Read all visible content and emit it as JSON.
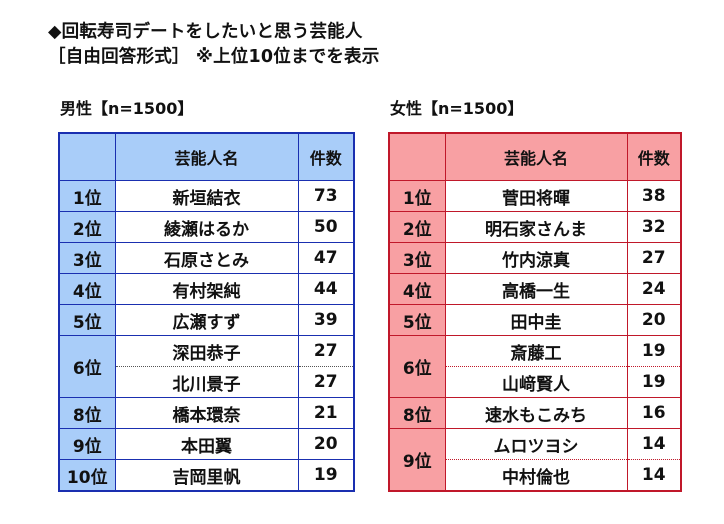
{
  "title": {
    "line1": "◆回転寿司デートをしたいと思う芸能人",
    "line2": "［自由回答形式］ ※上位10位までを表示"
  },
  "male": {
    "label": "男性【n=1500】",
    "header": {
      "rank": "",
      "name": "芸能人名",
      "count": "件数"
    },
    "rows": [
      {
        "rank": "1位",
        "name": "新垣結衣",
        "count": "73"
      },
      {
        "rank": "2位",
        "name": "綾瀬はるか",
        "count": "50"
      },
      {
        "rank": "3位",
        "name": "石原さとみ",
        "count": "47"
      },
      {
        "rank": "4位",
        "name": "有村架純",
        "count": "44"
      },
      {
        "rank": "5位",
        "name": "広瀬すず",
        "count": "39"
      },
      {
        "rank": "6位",
        "name": "深田恭子",
        "count": "27"
      },
      {
        "rank": "6位",
        "name": "北川景子",
        "count": "27"
      },
      {
        "rank": "8位",
        "name": "橋本環奈",
        "count": "21"
      },
      {
        "rank": "9位",
        "name": "本田翼",
        "count": "20"
      },
      {
        "rank": "10位",
        "name": "吉岡里帆",
        "count": "19"
      }
    ]
  },
  "female": {
    "label": "女性【n=1500】",
    "header": {
      "rank": "",
      "name": "芸能人名",
      "count": "件数"
    },
    "rows": [
      {
        "rank": "1位",
        "name": "菅田将暉",
        "count": "38"
      },
      {
        "rank": "2位",
        "name": "明石家さんま",
        "count": "32"
      },
      {
        "rank": "3位",
        "name": "竹内涼真",
        "count": "27"
      },
      {
        "rank": "4位",
        "name": "高橋一生",
        "count": "24"
      },
      {
        "rank": "5位",
        "name": "田中圭",
        "count": "20"
      },
      {
        "rank": "6位",
        "name": "斎藤工",
        "count": "19"
      },
      {
        "rank": "6位",
        "name": "山﨑賢人",
        "count": "19"
      },
      {
        "rank": "8位",
        "name": "速水もこみち",
        "count": "16"
      },
      {
        "rank": "9位",
        "name": "ムロツヨシ",
        "count": "14"
      },
      {
        "rank": "9位",
        "name": "中村倫也",
        "count": "14"
      }
    ]
  },
  "colors": {
    "male_header_bg": "#a9cdf9",
    "male_border": "#1a2fb0",
    "female_header_bg": "#f8a0a3",
    "female_border": "#c0182a"
  }
}
